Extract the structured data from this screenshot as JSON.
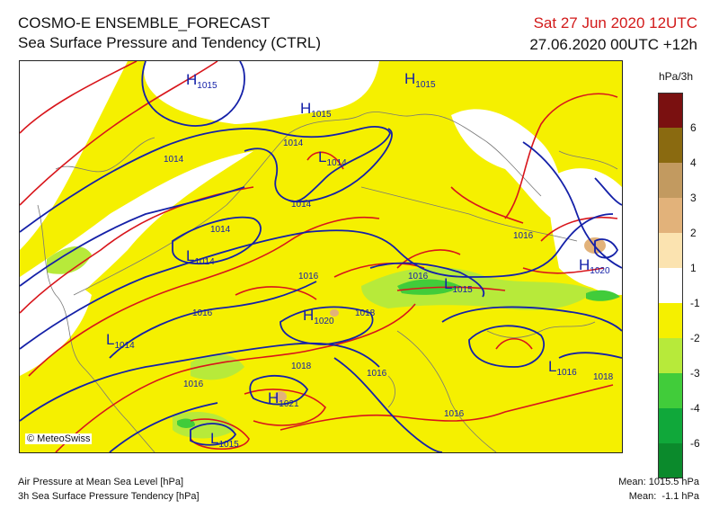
{
  "header": {
    "title": "COSMO-E ENSEMBLE_FORECAST",
    "subtitle": "Sea Surface Pressure and Tendency (CTRL)",
    "valid_time": "Sat 27 Jun 2020 12UTC",
    "run_time": "27.06.2020 00UTC +12h"
  },
  "legend": {
    "unit": "hPa/3h",
    "bins": [
      {
        "label": "6",
        "color": "#7a1010"
      },
      {
        "label": "4",
        "color": "#8a6a10"
      },
      {
        "label": "3",
        "color": "#c29a60"
      },
      {
        "label": "2",
        "color": "#e2b27a"
      },
      {
        "label": "1",
        "color": "#fbe3b0"
      },
      {
        "label": "-1",
        "color": "#ffffff"
      },
      {
        "label": "-2",
        "color": "#f5f000"
      },
      {
        "label": "-3",
        "color": "#b7ea3a"
      },
      {
        "label": "-4",
        "color": "#41cc3a"
      },
      {
        "label": "-6",
        "color": "#10a83a"
      },
      {
        "label": "",
        "color": "#0b8a2c"
      }
    ]
  },
  "map": {
    "copyright": "© MeteoSwiss",
    "pressure_centers": [
      {
        "letter": "H",
        "value": "1015"
      },
      {
        "letter": "H",
        "value": "1015"
      },
      {
        "letter": "H",
        "value": "1015"
      },
      {
        "letter": "L",
        "value": "1014"
      },
      {
        "letter": "L",
        "value": "1014"
      },
      {
        "letter": "L",
        "value": "1014"
      },
      {
        "letter": "L",
        "value": "1015"
      },
      {
        "letter": "H",
        "value": "1020"
      },
      {
        "letter": "H",
        "value": "1020"
      },
      {
        "letter": "H",
        "value": "1021"
      },
      {
        "letter": "L",
        "value": "1016"
      },
      {
        "letter": "L",
        "value": "1015"
      }
    ],
    "isobar_labels": [
      "1014",
      "1014",
      "1014",
      "1014",
      "1016",
      "1016",
      "1016",
      "1018",
      "1018",
      "1016",
      "1016",
      "1016",
      "1018",
      "1016"
    ]
  },
  "footer": {
    "line1": "Air Pressure at Mean Sea Level [hPa]",
    "line2": "3h Sea Surface Pressure Tendency [hPa]",
    "mean1": "Mean: 1015.5 hPa",
    "mean2": "Mean:  -1.1 hPa"
  },
  "colors": {
    "isobar": "#1420a8",
    "tendency_contour": "#d8151b",
    "tendency_fill_minus2": "#f5f000",
    "tendency_fill_minus3": "#b7ea3a",
    "tendency_fill_minus4": "#41cc3a"
  }
}
